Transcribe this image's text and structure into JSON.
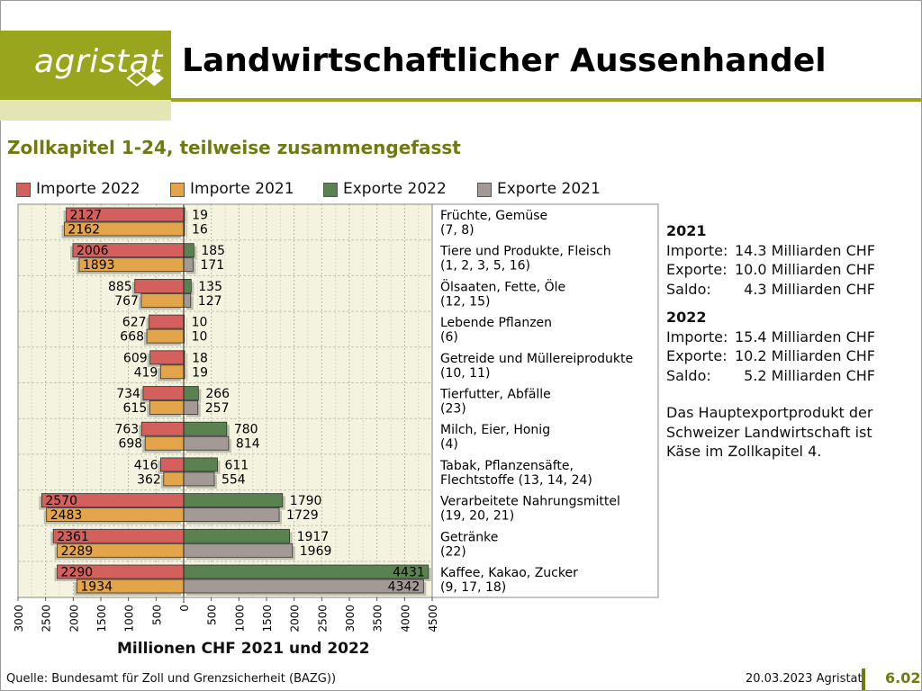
{
  "brand": {
    "logo_text": "agristat",
    "accent_color": "#9aa51e",
    "accent_dark": "#6f7a10"
  },
  "header": {
    "title": "Landwirtschaftlicher Aussenhandel"
  },
  "subtitle": "Zollkapitel 1-24, teilweise zusammengefasst",
  "legend": [
    {
      "label": "Importe 2022",
      "color": "#d4605e"
    },
    {
      "label": "Importe 2021",
      "color": "#e3a44a"
    },
    {
      "label": "Exporte 2022",
      "color": "#5a8251"
    },
    {
      "label": "Exporte 2021",
      "color": "#a39a96"
    }
  ],
  "chart_data": {
    "type": "bar",
    "orientation": "horizontal-butterfly",
    "xlabel": "Millionen CHF 2021 und 2022",
    "ylabel": "",
    "xlim": [
      -3000,
      4500
    ],
    "x_ticks": [
      "3000",
      "2500",
      "2000",
      "1500",
      "1000",
      "500",
      "0",
      "500",
      "1000",
      "1500",
      "2000",
      "2500",
      "3000",
      "3500",
      "4000",
      "4500"
    ],
    "grid": true,
    "legend_position": "top",
    "categories": [
      [
        "Früchte, Gemüse",
        "(7, 8)"
      ],
      [
        "Tiere und Produkte, Fleisch",
        "(1, 2, 3, 5, 16)"
      ],
      [
        "Ölsaaten, Fette, Öle",
        "(12, 15)"
      ],
      [
        "Lebende Pflanzen",
        "(6)"
      ],
      [
        "Getreide und Müllereiprodukte",
        "(10, 11)"
      ],
      [
        "Tierfutter, Abfälle",
        "(23)"
      ],
      [
        "Milch, Eier, Honig",
        "(4)"
      ],
      [
        "Tabak, Pflanzensäfte,",
        "Flechtstoffe (13, 14, 24)"
      ],
      [
        "Verarbeitete Nahrungsmittel",
        "(19, 20, 21)"
      ],
      [
        "Getränke",
        "(22)"
      ],
      [
        "Kaffee, Kakao, Zucker",
        "(9, 17, 18)"
      ]
    ],
    "series": [
      {
        "name": "Importe 2022",
        "side": "left",
        "color": "#d4605e",
        "values": [
          2127,
          2006,
          885,
          627,
          609,
          734,
          763,
          416,
          2570,
          2361,
          2290
        ]
      },
      {
        "name": "Importe 2021",
        "side": "left",
        "color": "#e3a44a",
        "values": [
          2162,
          1893,
          767,
          668,
          419,
          615,
          698,
          362,
          2483,
          2289,
          1934
        ]
      },
      {
        "name": "Exporte 2022",
        "side": "right",
        "color": "#5a8251",
        "values": [
          19,
          185,
          135,
          10,
          18,
          266,
          780,
          611,
          1790,
          1917,
          4431
        ]
      },
      {
        "name": "Exporte 2021",
        "side": "right",
        "color": "#a39a96",
        "values": [
          16,
          171,
          127,
          10,
          19,
          257,
          814,
          554,
          1729,
          1969,
          4342
        ]
      }
    ]
  },
  "summary": [
    {
      "year": "2021",
      "rows": [
        {
          "label": "Importe:",
          "value": "14.3 Milliarden CHF"
        },
        {
          "label": "Exporte:",
          "value": "10.0 Milliarden CHF"
        },
        {
          "label": "Saldo:",
          "value": "4.3 Milliarden CHF"
        }
      ]
    },
    {
      "year": "2022",
      "rows": [
        {
          "label": "Importe:",
          "value": "15.4 Milliarden CHF"
        },
        {
          "label": "Exporte:",
          "value": "10.2 Milliarden CHF"
        },
        {
          "label": "Saldo:",
          "value": "5.2 Milliarden CHF"
        }
      ]
    }
  ],
  "note": "Das Hauptexportprodukt der Schweizer Landwirtschaft ist Käse im Zollkapitel 4.",
  "footer": {
    "source": "Quelle: Bundesamt für Zoll und Grenzsicherheit (BAZG))",
    "date": "20.03.2023 Agristat",
    "page": "6.02"
  }
}
